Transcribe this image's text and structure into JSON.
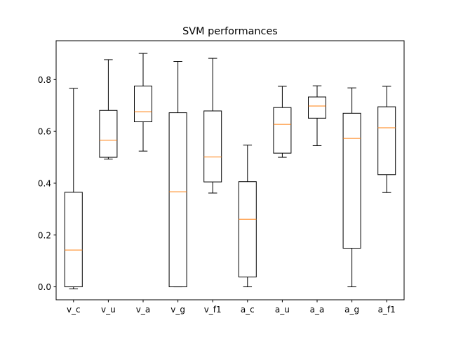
{
  "chart_data": {
    "type": "box",
    "title": "SVM performances",
    "xlabel": "",
    "ylabel": "",
    "ylim": [
      -0.05,
      0.95
    ],
    "yticks": [
      0.0,
      0.2,
      0.4,
      0.6,
      0.8
    ],
    "ytick_labels": [
      "0.0",
      "0.2",
      "0.4",
      "0.6",
      "0.8"
    ],
    "grid": false,
    "colors": {
      "box": "#000000",
      "median": "#ff7f0e",
      "frame": "#000000"
    },
    "categories": [
      "v_c",
      "v_u",
      "v_a",
      "v_g",
      "v_f1",
      "a_c",
      "a_u",
      "a_a",
      "a_g",
      "a_f1"
    ],
    "boxes": [
      {
        "label": "v_c",
        "whisker_low": -0.008,
        "q1": 0.0,
        "median": 0.142,
        "q3": 0.365,
        "whisker_high": 0.766
      },
      {
        "label": "v_u",
        "whisker_low": 0.493,
        "q1": 0.5,
        "median": 0.566,
        "q3": 0.681,
        "whisker_high": 0.877
      },
      {
        "label": "v_a",
        "whisker_low": 0.524,
        "q1": 0.637,
        "median": 0.676,
        "q3": 0.775,
        "whisker_high": 0.901
      },
      {
        "label": "v_g",
        "whisker_low": 0.0,
        "q1": 0.0,
        "median": 0.367,
        "q3": 0.672,
        "whisker_high": 0.87
      },
      {
        "label": "v_f1",
        "whisker_low": 0.362,
        "q1": 0.405,
        "median": 0.501,
        "q3": 0.679,
        "whisker_high": 0.882
      },
      {
        "label": "a_c",
        "whisker_low": 0.0,
        "q1": 0.038,
        "median": 0.261,
        "q3": 0.406,
        "whisker_high": 0.547
      },
      {
        "label": "a_u",
        "whisker_low": 0.5,
        "q1": 0.516,
        "median": 0.627,
        "q3": 0.692,
        "whisker_high": 0.774
      },
      {
        "label": "a_a",
        "whisker_low": 0.545,
        "q1": 0.651,
        "median": 0.698,
        "q3": 0.733,
        "whisker_high": 0.776
      },
      {
        "label": "a_g",
        "whisker_low": 0.0,
        "q1": 0.149,
        "median": 0.573,
        "q3": 0.67,
        "whisker_high": 0.768
      },
      {
        "label": "a_f1",
        "whisker_low": 0.364,
        "q1": 0.433,
        "median": 0.614,
        "q3": 0.695,
        "whisker_high": 0.774
      }
    ]
  }
}
